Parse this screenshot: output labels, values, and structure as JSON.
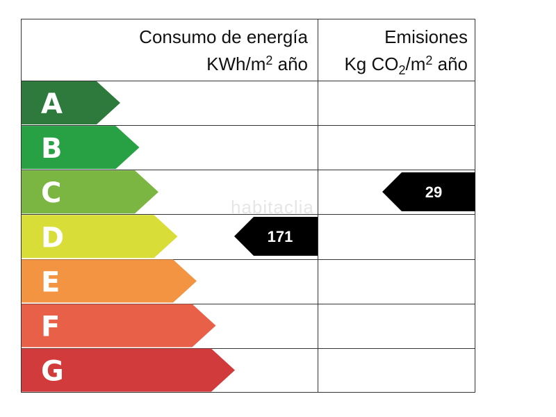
{
  "header": {
    "energy_line1": "Consumo de energía",
    "energy_line2_prefix": "KWh/m",
    "energy_line2_sup": "2",
    "energy_line2_suffix": " año",
    "emissions_line1": "Emisiones",
    "emissions_line2_prefix": "Kg CO",
    "emissions_line2_sub": "2",
    "emissions_line2_mid": "/m",
    "emissions_line2_sup": "2",
    "emissions_line2_suffix": " año"
  },
  "classes": [
    {
      "letter": "A",
      "color": "#2e7a3c"
    },
    {
      "letter": "B",
      "color": "#27a144"
    },
    {
      "letter": "C",
      "color": "#7bb642"
    },
    {
      "letter": "D",
      "color": "#d9dd38"
    },
    {
      "letter": "E",
      "color": "#f39442"
    },
    {
      "letter": "F",
      "color": "#e96049"
    },
    {
      "letter": "G",
      "color": "#d13b3b"
    }
  ],
  "energy_rating": {
    "class": "D",
    "value": "171"
  },
  "emissions_rating": {
    "class": "C",
    "value": "29"
  },
  "watermark": "habitaclia"
}
